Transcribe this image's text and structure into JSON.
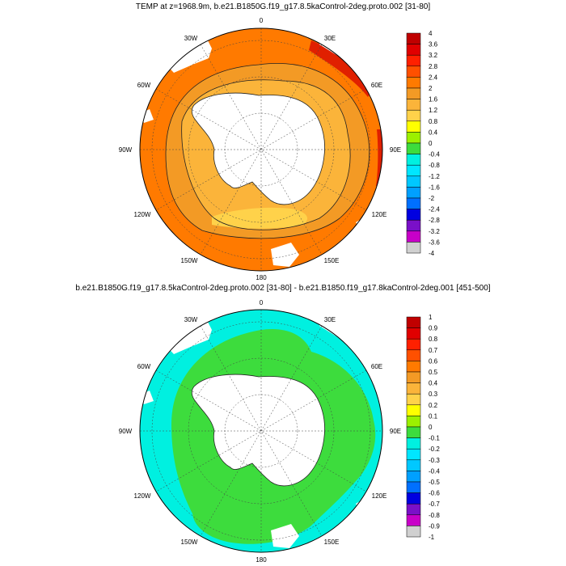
{
  "top": {
    "title": "TEMP at z=1968.9m, b.e21.B1850G.f19_g17.8.5kaControl-2deg.proto.002 [31-80]",
    "lon_labels": {
      "n": "0",
      "ne": "30E",
      "e1": "60E",
      "e2": "90E",
      "se1": "120E",
      "se2": "150E",
      "s": "180",
      "sw2": "150W",
      "sw1": "120W",
      "w2": "90W",
      "w1": "60W",
      "nw": "30W"
    },
    "colorbar": {
      "labels": [
        "4",
        "3.6",
        "3.2",
        "2.8",
        "2.4",
        "2",
        "1.6",
        "1.2",
        "0.8",
        "0.4",
        "0",
        "-0.4",
        "-0.8",
        "-1.2",
        "-1.6",
        "-2",
        "-2.4",
        "-2.8",
        "-3.2",
        "-3.6",
        "-4"
      ],
      "colors": [
        "#c00000",
        "#e00000",
        "#ff2000",
        "#ff5000",
        "#ff7a00",
        "#f39a25",
        "#fbb43a",
        "#ffd24a",
        "#ffff00",
        "#9cf000",
        "#3ddc3d",
        "#00f0e0",
        "#00e6ff",
        "#00c8ff",
        "#00a0ff",
        "#0070ff",
        "#0000e0",
        "#7a10c8",
        "#c800c8",
        "#d0d0d0",
        "#707070"
      ]
    }
  },
  "bottom": {
    "title": "b.e21.B1850G.f19_g17.8.5kaControl-2deg.proto.002 [31-80] - b.e21.B1850.f19_g17.8kaControl-2deg.001 [451-500]",
    "lon_labels": {
      "n": "0",
      "ne": "30E",
      "e1": "60E",
      "e2": "90E",
      "se1": "120E",
      "se2": "150E",
      "s": "180",
      "sw2": "150W",
      "sw1": "120W",
      "w2": "90W",
      "w1": "60W",
      "nw": "30W"
    },
    "colorbar": {
      "labels": [
        "1",
        "0.9",
        "0.8",
        "0.7",
        "0.6",
        "0.5",
        "0.4",
        "0.3",
        "0.2",
        "0.1",
        "0",
        "-0.1",
        "-0.2",
        "-0.3",
        "-0.4",
        "-0.5",
        "-0.6",
        "-0.7",
        "-0.8",
        "-0.9",
        "-1"
      ],
      "colors": [
        "#c00000",
        "#e00000",
        "#ff2000",
        "#ff5000",
        "#ff7a00",
        "#f39a25",
        "#fbb43a",
        "#ffd24a",
        "#ffff00",
        "#9cf000",
        "#3ddc3d",
        "#00f0e0",
        "#00e6ff",
        "#00c8ff",
        "#00a0ff",
        "#0070ff",
        "#0000e0",
        "#7a10c8",
        "#c800c8",
        "#d0d0d0",
        "#707070"
      ]
    }
  },
  "fill_colors": {
    "top_ocean": "#f39a25",
    "top_warm_band": "#ff7a00",
    "top_inner_ring": "#fbb43a",
    "top_red_patch": "#e02000",
    "top_yellow_patch": "#ffd24a",
    "bottom_ocean": "#00f0e0",
    "bottom_ring": "#3ddc3d"
  }
}
